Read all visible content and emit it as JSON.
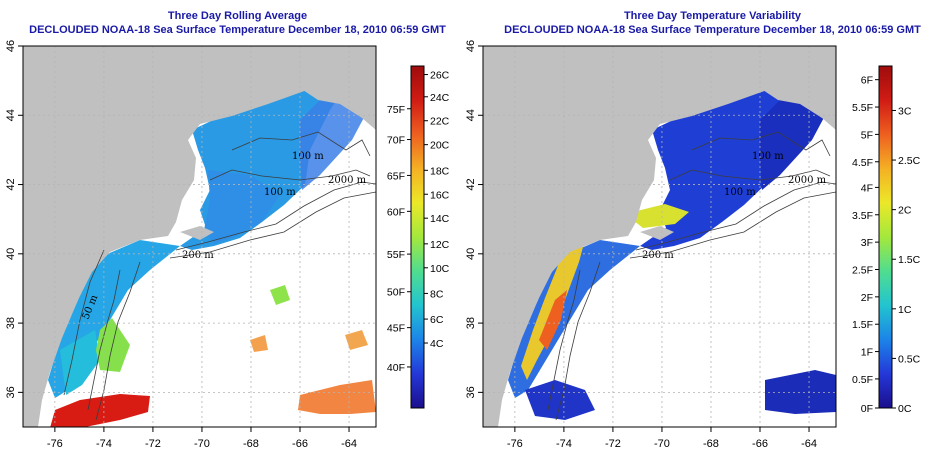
{
  "panels": [
    {
      "title": "Three Day Rolling Average",
      "subtitle": "DECLOUDED NOAA-18 Sea Surface Temperature December 18, 2010 06:59 GMT",
      "colorbar": {
        "colors": [
          "#1b0e8c",
          "#2438d8",
          "#1c84e8",
          "#22c4cf",
          "#50dd90",
          "#a4e83c",
          "#ece828",
          "#f4b024",
          "#ee6020",
          "#d01c14",
          "#9e0c0c"
        ],
        "inner_labels": [
          {
            "text": "26C",
            "frac": 0.975
          },
          {
            "text": "24C",
            "frac": 0.91
          },
          {
            "text": "22C",
            "frac": 0.84
          },
          {
            "text": "20C",
            "frac": 0.77
          },
          {
            "text": "18C",
            "frac": 0.695
          },
          {
            "text": "16C",
            "frac": 0.625
          },
          {
            "text": "14C",
            "frac": 0.555
          },
          {
            "text": "12C",
            "frac": 0.48
          },
          {
            "text": "10C",
            "frac": 0.41
          },
          {
            "text": "8C",
            "frac": 0.335
          },
          {
            "text": "6C",
            "frac": 0.26
          },
          {
            "text": "4C",
            "frac": 0.19
          }
        ],
        "outer_labels": [
          {
            "text": "75F",
            "frac": 0.875
          },
          {
            "text": "70F",
            "frac": 0.785
          },
          {
            "text": "65F",
            "frac": 0.68
          },
          {
            "text": "60F",
            "frac": 0.575
          },
          {
            "text": "55F",
            "frac": 0.45
          },
          {
            "text": "50F",
            "frac": 0.34
          },
          {
            "text": "45F",
            "frac": 0.235
          },
          {
            "text": "40F",
            "frac": 0.12
          }
        ]
      }
    },
    {
      "title": "Three Day Temperature Variability",
      "subtitle": "DECLOUDED NOAA-18 Sea Surface Temperature December 18, 2010 06:59 GMT",
      "colorbar": {
        "colors": [
          "#1b0e8c",
          "#2438d8",
          "#1c84e8",
          "#22c4cf",
          "#50dd90",
          "#a4e83c",
          "#ece828",
          "#f4b024",
          "#ee6020",
          "#d01c14",
          "#9e0c0c"
        ],
        "inner_labels": [
          {
            "text": "3C",
            "frac": 0.87
          },
          {
            "text": "2.5C",
            "frac": 0.725
          },
          {
            "text": "2C",
            "frac": 0.58
          },
          {
            "text": "1.5C",
            "frac": 0.435
          },
          {
            "text": "1C",
            "frac": 0.29
          },
          {
            "text": "0.5C",
            "frac": 0.145
          },
          {
            "text": "0C",
            "frac": 0.0
          }
        ],
        "outer_labels": [
          {
            "text": "6F",
            "frac": 0.96
          },
          {
            "text": "5.5F",
            "frac": 0.88
          },
          {
            "text": "5F",
            "frac": 0.8
          },
          {
            "text": "4.5F",
            "frac": 0.72
          },
          {
            "text": "4F",
            "frac": 0.645
          },
          {
            "text": "3.5F",
            "frac": 0.565
          },
          {
            "text": "3F",
            "frac": 0.485
          },
          {
            "text": "2.5F",
            "frac": 0.405
          },
          {
            "text": "2F",
            "frac": 0.325
          },
          {
            "text": "1.5F",
            "frac": 0.245
          },
          {
            "text": "1F",
            "frac": 0.165
          },
          {
            "text": "0.5F",
            "frac": 0.085
          },
          {
            "text": "0F",
            "frac": 0.0
          }
        ]
      }
    }
  ],
  "axes": {
    "lon_ticks": [
      -76,
      -74,
      -72,
      -70,
      -68,
      -66,
      -64
    ],
    "lon_labels": [
      "-76",
      "-74",
      "-72",
      "-70",
      "-68",
      "-66",
      "-64"
    ],
    "lat_ticks": [
      36,
      38,
      40,
      42,
      44,
      46
    ],
    "lat_labels": [
      "36",
      "38",
      "40",
      "42",
      "44",
      "46"
    ],
    "lon_range": [
      -77.3,
      -62.9
    ],
    "lat_range": [
      35.0,
      46.0
    ]
  },
  "contour_labels": [
    "100 m",
    "100 m",
    "2000 m",
    "200 m",
    "50 m"
  ],
  "colors": {
    "land": "#c0c0c0",
    "title_blue": "#1a1aa6",
    "grid": "#b4b4b4"
  }
}
